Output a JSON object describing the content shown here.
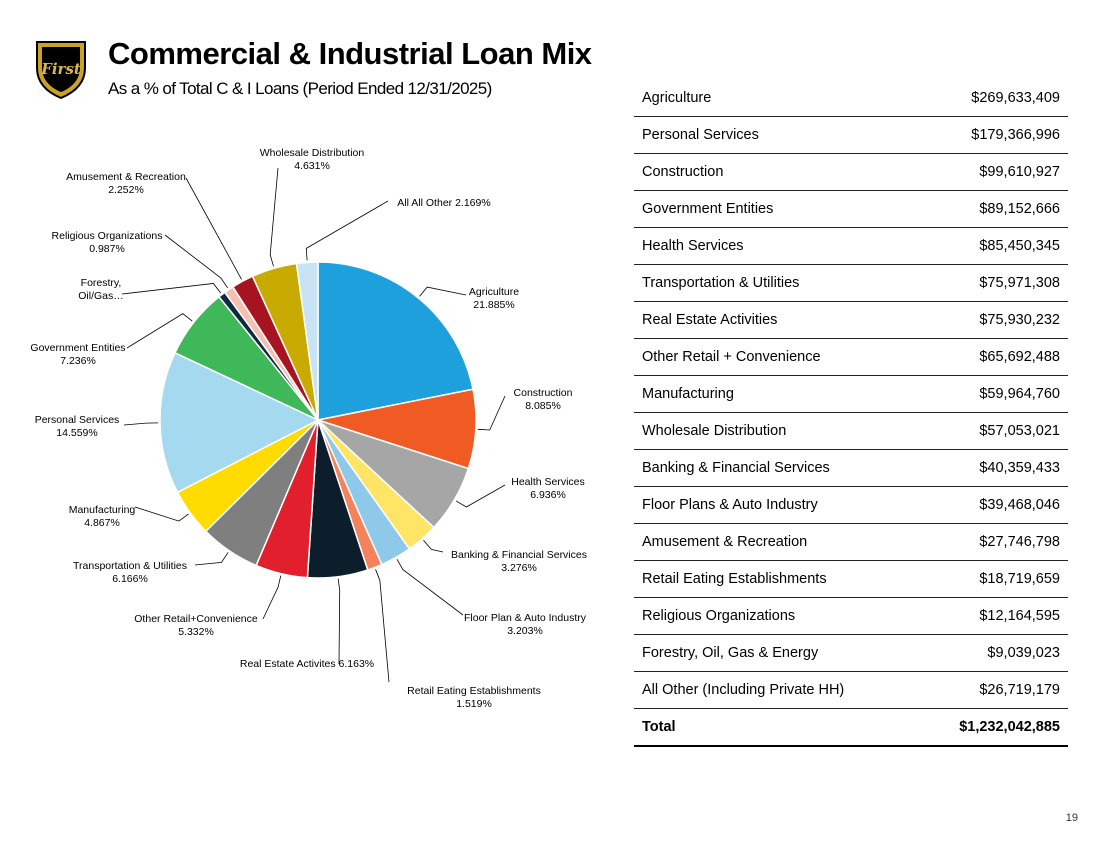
{
  "header": {
    "title": "Commercial & Industrial Loan Mix",
    "subtitle": "As a % of Total C & I Loans (Period Ended 12/31/2025)",
    "logo_text": "First"
  },
  "chart_data": {
    "type": "pie",
    "title": "Commercial & Industrial Loan Mix",
    "slices": [
      {
        "label": "Agriculture",
        "value": 21.885,
        "value_label": "21.885%",
        "color": "#1ea0dc"
      },
      {
        "label": "Construction",
        "value": 8.085,
        "value_label": "8.085%",
        "color": "#f05a23"
      },
      {
        "label": "Health Services",
        "value": 6.936,
        "value_label": "6.936%",
        "color": "#a6a6a6"
      },
      {
        "label": "Banking & Financial Services",
        "value": 3.276,
        "value_label": "3.276%",
        "color": "#ffe566"
      },
      {
        "label": "Floor Plan & Auto Industry",
        "value": 3.203,
        "value_label": "3.203%",
        "color": "#8ec9ea"
      },
      {
        "label": "Retail Eating Establishments",
        "value": 1.519,
        "value_label": "1.519%",
        "color": "#f4825a"
      },
      {
        "label": "Real Estate Activites",
        "value": 6.163,
        "value_label": "6.163%",
        "color": "#0c1e2c"
      },
      {
        "label": "Other Retail+Convenience",
        "value": 5.332,
        "value_label": "5.332%",
        "color": "#e21f2d"
      },
      {
        "label": "Transportation & Utilities",
        "value": 6.166,
        "value_label": "6.166%",
        "color": "#7f7f7f"
      },
      {
        "label": "Manufacturing",
        "value": 4.867,
        "value_label": "4.867%",
        "color": "#ffdc00"
      },
      {
        "label": "Personal Services",
        "value": 14.559,
        "value_label": "14.559%",
        "color": "#a5d9ef"
      },
      {
        "label": "Government Entities",
        "value": 7.236,
        "value_label": "7.236%",
        "color": "#3fb85a"
      },
      {
        "label": "Forestry, Oil/Gas…",
        "value": 0.733,
        "value_label": "",
        "color": "#0d2a40"
      },
      {
        "label": "Religious Organizations",
        "value": 0.987,
        "value_label": "0.987%",
        "color": "#f5c0b0"
      },
      {
        "label": "Amusement & Recreation",
        "value": 2.252,
        "value_label": "2.252%",
        "color": "#a51420"
      },
      {
        "label": "Wholesale Distribution",
        "value": 4.631,
        "value_label": "4.631%",
        "color": "#c9aa00"
      },
      {
        "label": "All All Other",
        "value": 2.169,
        "value_label": "2.169%",
        "color": "#c8e4f4"
      }
    ]
  },
  "table": {
    "rows": [
      {
        "category": "Agriculture",
        "amount": "$269,633,409"
      },
      {
        "category": "Personal Services",
        "amount": "$179,366,996"
      },
      {
        "category": "Construction",
        "amount": "$99,610,927"
      },
      {
        "category": "Government Entities",
        "amount": "$89,152,666"
      },
      {
        "category": "Health Services",
        "amount": "$85,450,345"
      },
      {
        "category": "Transportation & Utilities",
        "amount": "$75,971,308"
      },
      {
        "category": "Real Estate Activities",
        "amount": "$75,930,232"
      },
      {
        "category": "Other Retail + Convenience",
        "amount": "$65,692,488"
      },
      {
        "category": "Manufacturing",
        "amount": "$59,964,760"
      },
      {
        "category": "Wholesale Distribution",
        "amount": "$57,053,021"
      },
      {
        "category": "Banking & Financial Services",
        "amount": "$40,359,433"
      },
      {
        "category": "Floor Plans & Auto Industry",
        "amount": "$39,468,046"
      },
      {
        "category": "Amusement & Recreation",
        "amount": "$27,746,798"
      },
      {
        "category": "Retail Eating Establishments",
        "amount": "$18,719,659"
      },
      {
        "category": "Religious Organizations",
        "amount": "$12,164,595"
      },
      {
        "category": "Forestry, Oil, Gas & Energy",
        "amount": "$9,039,023"
      },
      {
        "category": "All Other (Including Private HH)",
        "amount": "$26,719,179"
      }
    ],
    "total_label": "Total",
    "total_amount": "$1,232,042,885"
  },
  "footer": {
    "page_number": "19"
  }
}
